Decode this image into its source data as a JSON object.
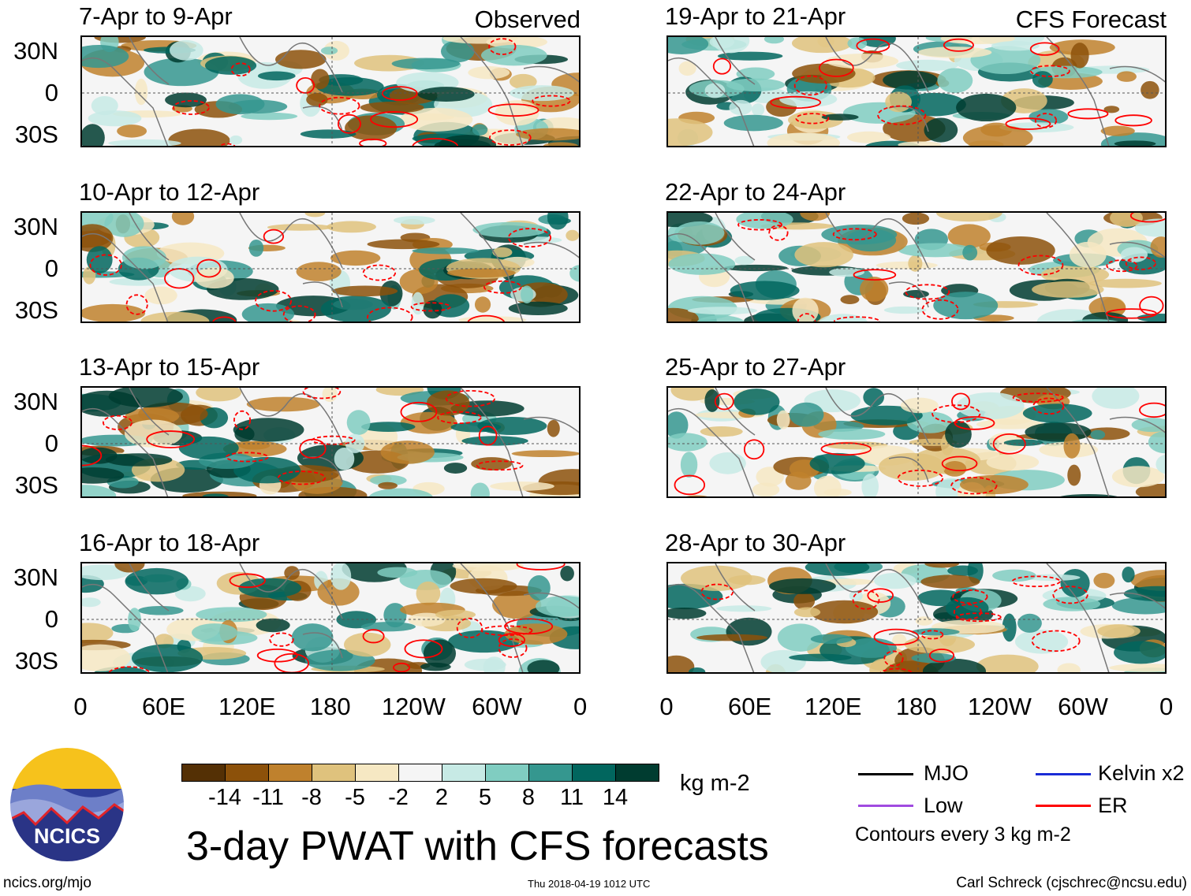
{
  "panels_left": [
    {
      "title": "7-Apr to 9-Apr",
      "tag": "Observed"
    },
    {
      "title": "10-Apr to 12-Apr"
    },
    {
      "title": "13-Apr to 15-Apr"
    },
    {
      "title": "16-Apr to 18-Apr"
    }
  ],
  "panels_right": [
    {
      "title": "19-Apr to 21-Apr",
      "tag": "CFS Forecast"
    },
    {
      "title": "22-Apr to 24-Apr"
    },
    {
      "title": "25-Apr to 27-Apr"
    },
    {
      "title": "28-Apr to 30-Apr"
    }
  ],
  "y_ticks": [
    "30N",
    "0",
    "30S"
  ],
  "x_ticks": [
    "0",
    "60E",
    "120E",
    "180",
    "120W",
    "60W",
    "0"
  ],
  "colorbar": {
    "colors": [
      "#543005",
      "#8c510a",
      "#bf812d",
      "#dfc27d",
      "#f6e8c3",
      "#f5f5f5",
      "#c7eae5",
      "#80cdc1",
      "#35978f",
      "#01665e",
      "#003c30"
    ],
    "labels": [
      "-14",
      "-11",
      "-8",
      "-5",
      "-2",
      "2",
      "5",
      "8",
      "11",
      "14"
    ],
    "units": "kg m-2"
  },
  "title": "3-day PWAT with CFS forecasts",
  "legend": {
    "items": [
      {
        "label": "MJO",
        "color": "#000000"
      },
      {
        "label": "Kelvin x2",
        "color": "#1a2bd6"
      },
      {
        "label": "Low",
        "color": "#a04be0"
      },
      {
        "label": "ER",
        "color": "#ff0000"
      }
    ],
    "note": "Contours every 3 kg m-2"
  },
  "logo": {
    "text": "NCICS"
  },
  "footer": {
    "url": "ncics.org/mjo",
    "timestamp": "Thu 2018-04-19 1012 UTC",
    "credit": "Carl Schreck (cjschrec@ncsu.edu)"
  }
}
